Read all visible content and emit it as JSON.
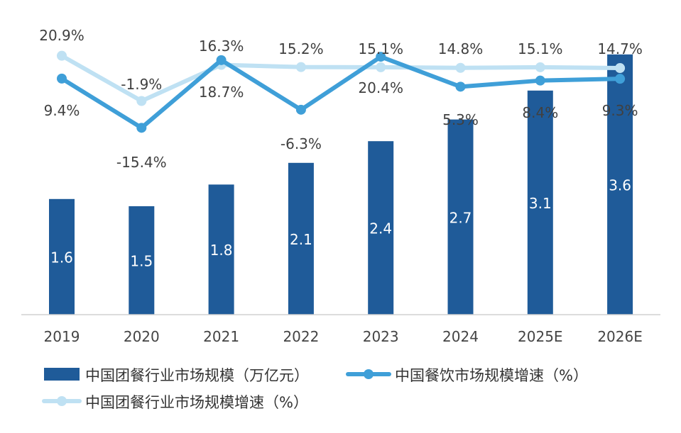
{
  "chart_data": {
    "type": "bar",
    "categories": [
      "2019",
      "2020",
      "2021",
      "2022",
      "2023",
      "2024",
      "2025E",
      "2026E"
    ],
    "series": [
      {
        "name": "中国团餐行业市场规模（万亿元）",
        "type": "bar",
        "values": [
          1.6,
          1.5,
          1.8,
          2.1,
          2.4,
          2.7,
          3.1,
          3.6
        ],
        "labels": [
          "1.6",
          "1.5",
          "1.8",
          "2.1",
          "2.4",
          "2.7",
          "3.1",
          "3.6"
        ],
        "color": "#1f5b99"
      },
      {
        "name": "中国餐饮市场规模增速（%）",
        "type": "line",
        "values": [
          9.4,
          -15.4,
          18.7,
          -6.3,
          20.4,
          5.3,
          8.4,
          9.3
        ],
        "labels": [
          "9.4%",
          "-15.4%",
          "18.7%",
          "-6.3%",
          "20.4%",
          "5.3%",
          "8.4%",
          "9.3%"
        ],
        "color": "#3f9fd8"
      },
      {
        "name": "中国团餐行业市场规模增速（%）",
        "type": "line",
        "values": [
          20.9,
          -1.9,
          16.3,
          15.2,
          15.1,
          14.8,
          15.1,
          14.7
        ],
        "labels": [
          "20.9%",
          "-1.9%",
          "16.3%",
          "15.2%",
          "15.1%",
          "14.8%",
          "15.1%",
          "14.7%"
        ],
        "color": "#bfe1f3"
      }
    ],
    "legend_position": "bottom",
    "grid": false
  }
}
